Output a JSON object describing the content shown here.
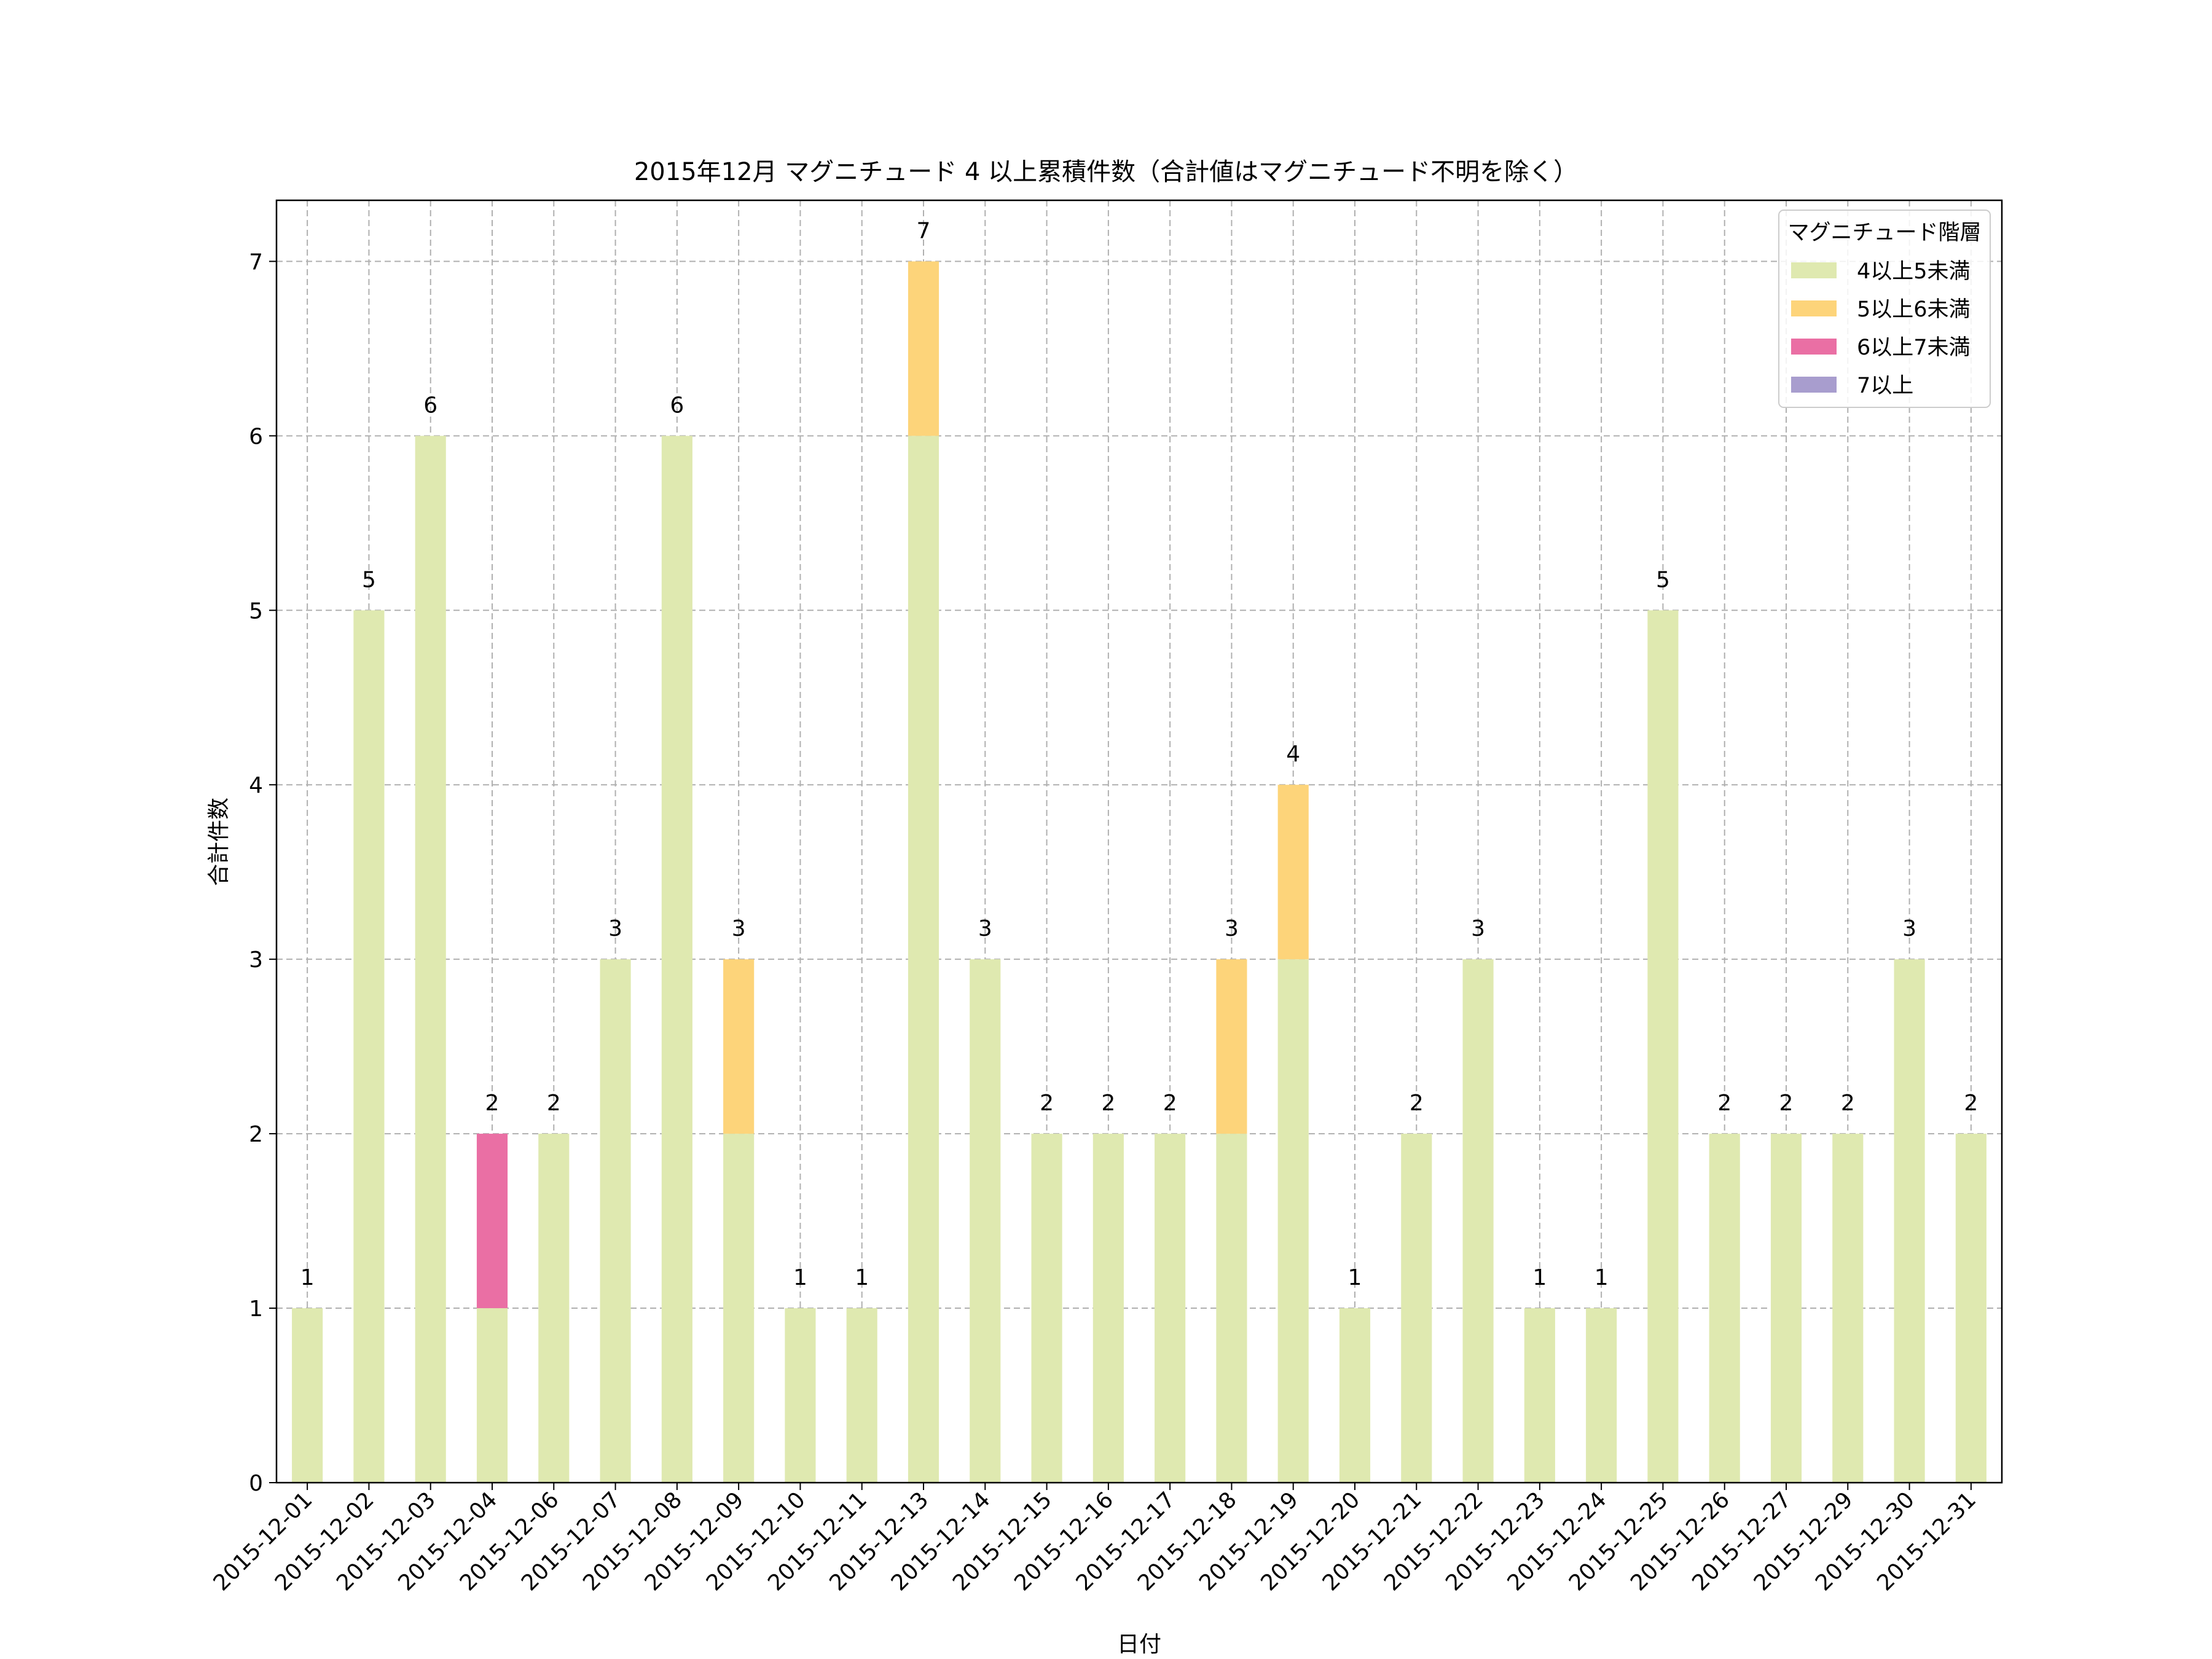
{
  "chart_data": {
    "type": "bar",
    "stacked": true,
    "title": "2015年12月 マグニチュード 4 以上累積件数（合計値はマグニチュード不明を除く）",
    "xlabel": "日付",
    "ylabel": "合計件数",
    "ylim": [
      0,
      7.35
    ],
    "yticks": [
      0,
      1,
      2,
      3,
      4,
      5,
      6,
      7
    ],
    "grid": true,
    "legend": {
      "title": "マグニチュード階層",
      "placement": "top-right"
    },
    "categories": [
      "2015-12-01",
      "2015-12-02",
      "2015-12-03",
      "2015-12-04",
      "2015-12-06",
      "2015-12-07",
      "2015-12-08",
      "2015-12-09",
      "2015-12-10",
      "2015-12-11",
      "2015-12-13",
      "2015-12-14",
      "2015-12-15",
      "2015-12-16",
      "2015-12-17",
      "2015-12-18",
      "2015-12-19",
      "2015-12-20",
      "2015-12-21",
      "2015-12-22",
      "2015-12-23",
      "2015-12-24",
      "2015-12-25",
      "2015-12-26",
      "2015-12-27",
      "2015-12-29",
      "2015-12-30",
      "2015-12-31"
    ],
    "series": [
      {
        "name": "4以上5未満",
        "color": "#dfe9b0",
        "values": [
          1,
          5,
          6,
          1,
          2,
          3,
          6,
          2,
          1,
          1,
          6,
          3,
          2,
          2,
          2,
          2,
          3,
          1,
          2,
          3,
          1,
          1,
          5,
          2,
          2,
          2,
          3,
          2
        ]
      },
      {
        "name": "5以上6未満",
        "color": "#fdd47a",
        "values": [
          0,
          0,
          0,
          0,
          0,
          0,
          0,
          1,
          0,
          0,
          1,
          0,
          0,
          0,
          0,
          1,
          1,
          0,
          0,
          0,
          0,
          0,
          0,
          0,
          0,
          0,
          0,
          0
        ]
      },
      {
        "name": "6以上7未満",
        "color": "#ea6fa4",
        "values": [
          0,
          0,
          0,
          1,
          0,
          0,
          0,
          0,
          0,
          0,
          0,
          0,
          0,
          0,
          0,
          0,
          0,
          0,
          0,
          0,
          0,
          0,
          0,
          0,
          0,
          0,
          0,
          0
        ]
      },
      {
        "name": "7以上",
        "color": "#a89dce",
        "values": [
          0,
          0,
          0,
          0,
          0,
          0,
          0,
          0,
          0,
          0,
          0,
          0,
          0,
          0,
          0,
          0,
          0,
          0,
          0,
          0,
          0,
          0,
          0,
          0,
          0,
          0,
          0,
          0
        ]
      }
    ],
    "totals": [
      1,
      5,
      6,
      2,
      2,
      3,
      6,
      3,
      1,
      1,
      7,
      3,
      2,
      2,
      2,
      3,
      4,
      1,
      2,
      3,
      1,
      1,
      5,
      2,
      2,
      2,
      3,
      2
    ]
  }
}
